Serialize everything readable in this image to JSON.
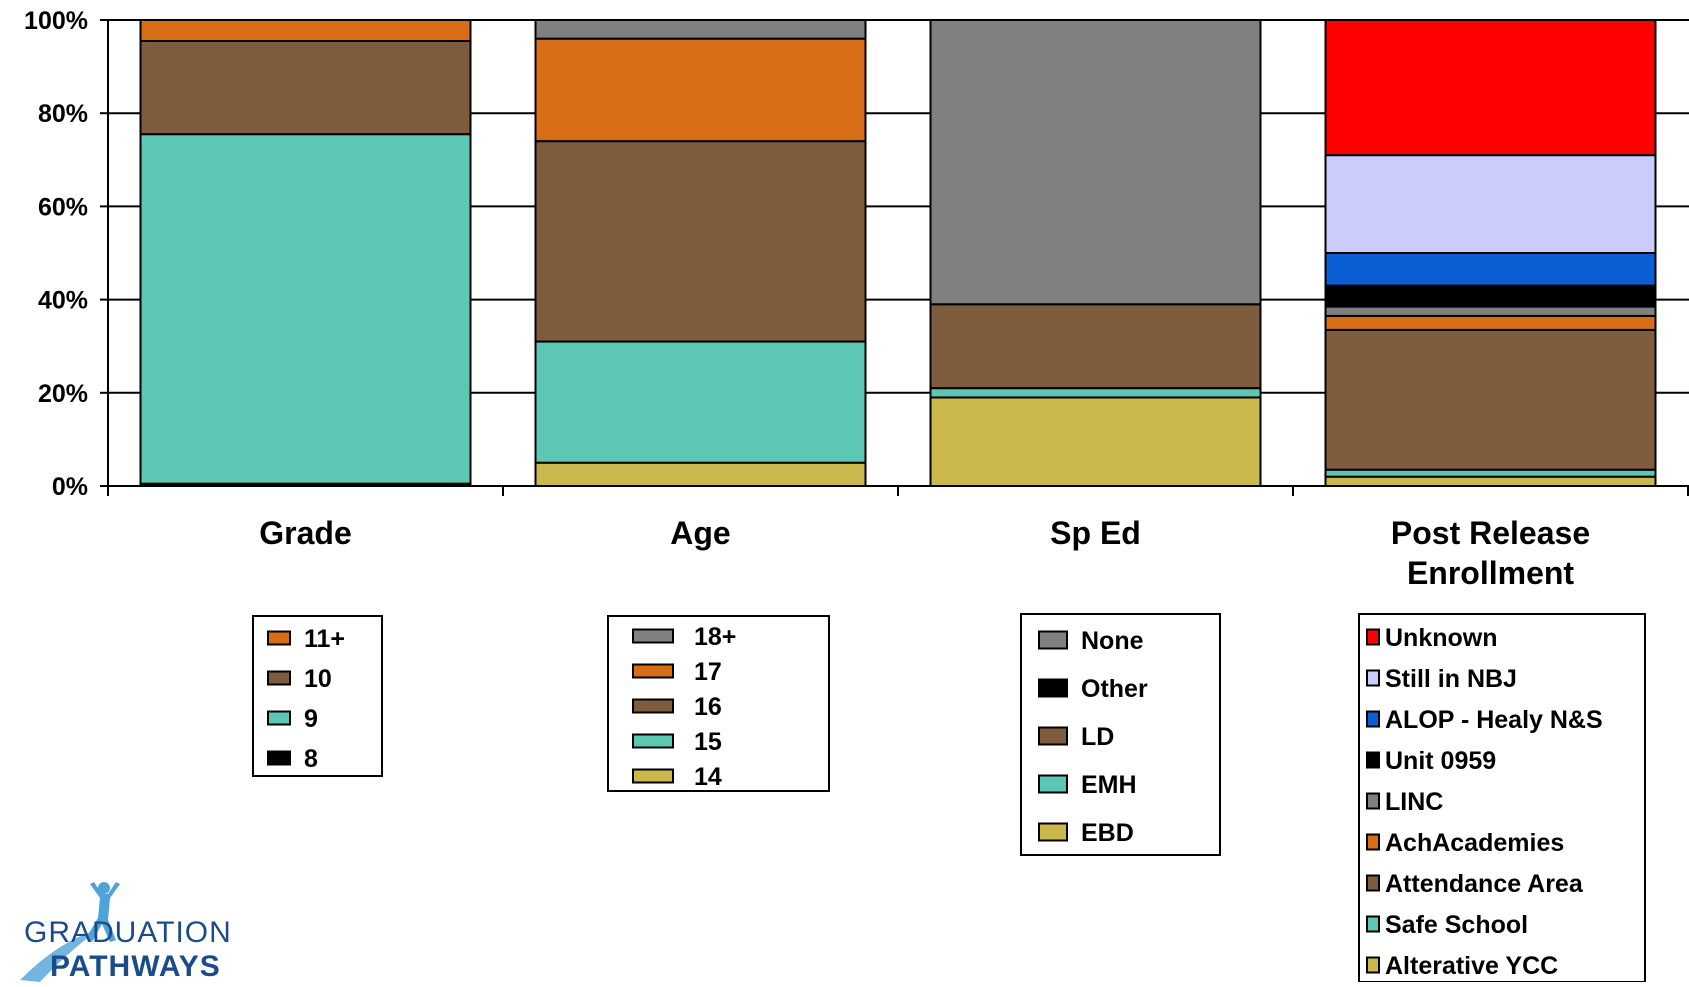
{
  "chart_data": {
    "type": "bar",
    "stacked": true,
    "percent": true,
    "title": "",
    "xlabel": "",
    "ylabel": "",
    "ylim": [
      0,
      100
    ],
    "yticks": [
      "0%",
      "20%",
      "40%",
      "60%",
      "80%",
      "100%"
    ],
    "grid": true,
    "categories": [
      "Grade",
      "Age",
      "Sp Ed",
      "Post Release\nEnrollment"
    ],
    "groups": [
      {
        "category": "Grade",
        "segments": [
          {
            "name": "8",
            "value": 0.5,
            "color": "#000000"
          },
          {
            "name": "9",
            "value": 75,
            "color": "#5CC8B4"
          },
          {
            "name": "10",
            "value": 20,
            "color": "#7F5C3E"
          },
          {
            "name": "11+",
            "value": 4.5,
            "color": "#D86D17"
          }
        ]
      },
      {
        "category": "Age",
        "segments": [
          {
            "name": "14",
            "value": 5,
            "color": "#CBB84D"
          },
          {
            "name": "15",
            "value": 26,
            "color": "#5CC8B4"
          },
          {
            "name": "16",
            "value": 43,
            "color": "#7F5C3E"
          },
          {
            "name": "17",
            "value": 22,
            "color": "#D86D17"
          },
          {
            "name": "18+",
            "value": 4,
            "color": "#808080"
          }
        ]
      },
      {
        "category": "Sp Ed",
        "segments": [
          {
            "name": "EBD",
            "value": 19,
            "color": "#CBB84D"
          },
          {
            "name": "EMH",
            "value": 2,
            "color": "#5CC8B4"
          },
          {
            "name": "LD",
            "value": 18,
            "color": "#7F5C3E"
          },
          {
            "name": "Other",
            "value": 0,
            "color": "#000000"
          },
          {
            "name": "None",
            "value": 61,
            "color": "#808080"
          }
        ]
      },
      {
        "category": "Post Release\nEnrollment",
        "segments": [
          {
            "name": "Alterative YCC",
            "value": 2,
            "color": "#CBB84D"
          },
          {
            "name": "Safe School",
            "value": 1.5,
            "color": "#5CC8B4"
          },
          {
            "name": "Attendance Area",
            "value": 30,
            "color": "#7F5C3E"
          },
          {
            "name": "AchAcademies",
            "value": 3,
            "color": "#D86D17"
          },
          {
            "name": "LINC",
            "value": 2,
            "color": "#808080"
          },
          {
            "name": "Unit 0959",
            "value": 4.5,
            "color": "#000000"
          },
          {
            "name": "ALOP - Healy N&S",
            "value": 7,
            "color": "#0B5FD4"
          },
          {
            "name": "Still in NBJ",
            "value": 21,
            "color": "#CCCCFC"
          },
          {
            "name": "Unknown",
            "value": 29,
            "color": "#FF0000"
          }
        ]
      }
    ],
    "legends": [
      {
        "category": "Grade",
        "items": [
          {
            "name": "11+",
            "color": "#D86D17"
          },
          {
            "name": "10",
            "color": "#7F5C3E"
          },
          {
            "name": "9",
            "color": "#5CC8B4"
          },
          {
            "name": "8",
            "color": "#000000"
          }
        ]
      },
      {
        "category": "Age",
        "items": [
          {
            "name": "18+",
            "color": "#808080"
          },
          {
            "name": "17",
            "color": "#D86D17"
          },
          {
            "name": "16",
            "color": "#7F5C3E"
          },
          {
            "name": "15",
            "color": "#5CC8B4"
          },
          {
            "name": "14",
            "color": "#CBB84D"
          }
        ]
      },
      {
        "category": "Sp Ed",
        "items": [
          {
            "name": "None",
            "color": "#808080"
          },
          {
            "name": "Other",
            "color": "#000000"
          },
          {
            "name": "LD",
            "color": "#7F5C3E"
          },
          {
            "name": "EMH",
            "color": "#5CC8B4"
          },
          {
            "name": "EBD",
            "color": "#CBB84D"
          }
        ]
      },
      {
        "category": "Post Release Enrollment",
        "items": [
          {
            "name": "Unknown",
            "color": "#FF0000"
          },
          {
            "name": "Still in NBJ",
            "color": "#CCCCFC"
          },
          {
            "name": "ALOP - Healy N&S",
            "color": "#0B5FD4"
          },
          {
            "name": "Unit 0959",
            "color": "#000000"
          },
          {
            "name": "LINC",
            "color": "#808080"
          },
          {
            "name": "AchAcademies",
            "color": "#D86D17"
          },
          {
            "name": "Attendance Area",
            "color": "#7F5C3E"
          },
          {
            "name": "Safe School",
            "color": "#5CC8B4"
          },
          {
            "name": "Alterative YCC",
            "color": "#CBB84D"
          }
        ]
      }
    ]
  },
  "logo": {
    "line1": "GRADUATION",
    "line2": "PATHWAYS",
    "icon": "running-figure-icon",
    "colors": {
      "text": "#1B4B8A",
      "figure": "#4FA3D9"
    }
  }
}
